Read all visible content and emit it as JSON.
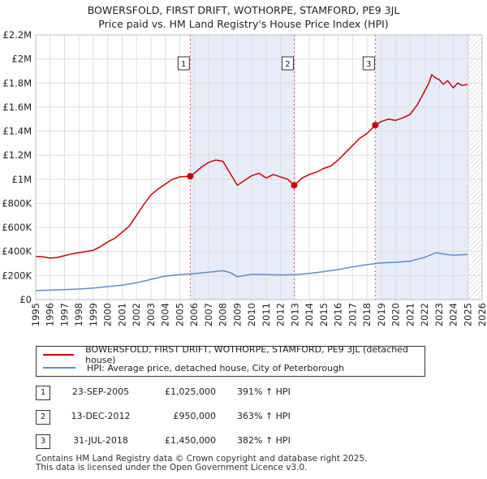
{
  "title": {
    "line1": "BOWERSFOLD, FIRST DRIFT, WOTHORPE, STAMFORD, PE9 3JL",
    "line2": "Price paid vs. HM Land Registry's House Price Index (HPI)"
  },
  "colors": {
    "property": "#cc0000",
    "hpi": "#5b8fc9",
    "shade": "#e6ecf8",
    "grid": "#dddddd",
    "marker_line": "#e06060"
  },
  "legend": {
    "property_label": "BOWERSFOLD, FIRST DRIFT, WOTHORPE, STAMFORD, PE9 3JL (detached house)",
    "hpi_label": "HPI: Average price, detached house, City of Peterborough"
  },
  "transactions": [
    {
      "num": "1",
      "date": "23-SEP-2005",
      "price": "£1,025,000",
      "hpi": "391% ↑ HPI"
    },
    {
      "num": "2",
      "date": "13-DEC-2012",
      "price": "£950,000",
      "hpi": "363% ↑ HPI"
    },
    {
      "num": "3",
      "date": "31-JUL-2018",
      "price": "£1,450,000",
      "hpi": "382% ↑ HPI"
    }
  ],
  "footer": {
    "line1": "Contains HM Land Registry data © Crown copyright and database right 2025.",
    "line2": "This data is licensed under the Open Government Licence v3.0."
  },
  "chart_data": {
    "type": "line",
    "xlim": [
      1995,
      2026
    ],
    "ylim": [
      0,
      2200000
    ],
    "y_ticks": [
      0,
      200000,
      400000,
      600000,
      800000,
      1000000,
      1200000,
      1400000,
      1600000,
      1800000,
      2000000,
      2200000
    ],
    "y_tick_labels": [
      "£0",
      "£200K",
      "£400K",
      "£600K",
      "£800K",
      "£1M",
      "£1.2M",
      "£1.4M",
      "£1.6M",
      "£1.8M",
      "£2M",
      "£2.2M"
    ],
    "x_ticks": [
      1995,
      1996,
      1997,
      1998,
      1999,
      2000,
      2001,
      2002,
      2003,
      2004,
      2005,
      2006,
      2007,
      2008,
      2009,
      2010,
      2011,
      2012,
      2013,
      2014,
      2015,
      2016,
      2017,
      2018,
      2019,
      2020,
      2021,
      2022,
      2023,
      2024,
      2025,
      2026
    ],
    "x_tick_labels": [
      "1995",
      "1996",
      "1997",
      "1998",
      "1999",
      "2000",
      "2001",
      "2002",
      "2003",
      "2004",
      "2005",
      "2006",
      "2007",
      "2008",
      "2009",
      "2010",
      "2011",
      "2012",
      "2013",
      "2014",
      "2015",
      "2016",
      "2017",
      "2018",
      "2019",
      "2020",
      "2021",
      "2022",
      "2023",
      "2024",
      "2025",
      "2026"
    ],
    "shaded_ranges": [
      [
        2005.73,
        2012.95
      ],
      [
        2018.58,
        2025.1
      ]
    ],
    "hatch_from": 2025.1,
    "sales": [
      {
        "label": "1",
        "x": 2005.73,
        "y": 1025000
      },
      {
        "label": "2",
        "x": 2012.95,
        "y": 950000
      },
      {
        "label": "3",
        "x": 2018.58,
        "y": 1450000
      }
    ],
    "series": [
      {
        "name": "BOWERSFOLD, FIRST DRIFT, WOTHORPE, STAMFORD, PE9 3JL (detached house)",
        "x": [
          1995,
          1995.5,
          1996,
          1996.5,
          1997,
          1997.5,
          1998,
          1998.5,
          1999,
          1999.5,
          2000,
          2000.5,
          2001,
          2001.5,
          2002,
          2002.5,
          2003,
          2003.5,
          2004,
          2004.5,
          2005,
          2005.73,
          2006,
          2006.5,
          2007,
          2007.5,
          2008,
          2008.5,
          2009,
          2009.5,
          2010,
          2010.5,
          2011,
          2011.5,
          2012,
          2012.5,
          2012.95,
          2013.5,
          2014,
          2014.5,
          2015,
          2015.5,
          2016,
          2016.5,
          2017,
          2017.5,
          2018,
          2018.58,
          2019,
          2019.5,
          2020,
          2020.5,
          2021,
          2021.5,
          2022,
          2022.3,
          2022.5,
          2022.8,
          2023,
          2023.3,
          2023.6,
          2024,
          2024.3,
          2024.6,
          2025
        ],
        "values": [
          360000,
          355000,
          345000,
          350000,
          365000,
          380000,
          390000,
          400000,
          410000,
          440000,
          480000,
          510000,
          560000,
          610000,
          700000,
          790000,
          870000,
          920000,
          960000,
          1000000,
          1020000,
          1025000,
          1050000,
          1100000,
          1140000,
          1160000,
          1150000,
          1050000,
          950000,
          990000,
          1030000,
          1050000,
          1010000,
          1040000,
          1020000,
          1000000,
          950000,
          1010000,
          1040000,
          1060000,
          1090000,
          1110000,
          1160000,
          1220000,
          1280000,
          1340000,
          1380000,
          1450000,
          1480000,
          1500000,
          1490000,
          1510000,
          1540000,
          1620000,
          1730000,
          1800000,
          1870000,
          1840000,
          1830000,
          1790000,
          1820000,
          1760000,
          1800000,
          1780000,
          1790000
        ]
      },
      {
        "name": "HPI: Average price, detached house, City of Peterborough",
        "x": [
          1995,
          1996,
          1997,
          1998,
          1999,
          2000,
          2001,
          2002,
          2003,
          2004,
          2005,
          2006,
          2007,
          2008,
          2008.5,
          2009,
          2009.5,
          2010,
          2011,
          2012,
          2013,
          2014,
          2015,
          2016,
          2017,
          2018,
          2019,
          2020,
          2021,
          2022,
          2022.8,
          2023,
          2023.5,
          2024,
          2024.5,
          2025
        ],
        "values": [
          75000,
          78000,
          83000,
          88000,
          95000,
          108000,
          120000,
          140000,
          168000,
          195000,
          208000,
          215000,
          228000,
          240000,
          225000,
          190000,
          200000,
          210000,
          208000,
          205000,
          208000,
          218000,
          232000,
          250000,
          272000,
          290000,
          305000,
          310000,
          320000,
          350000,
          390000,
          385000,
          375000,
          370000,
          372000,
          375000
        ]
      }
    ]
  }
}
